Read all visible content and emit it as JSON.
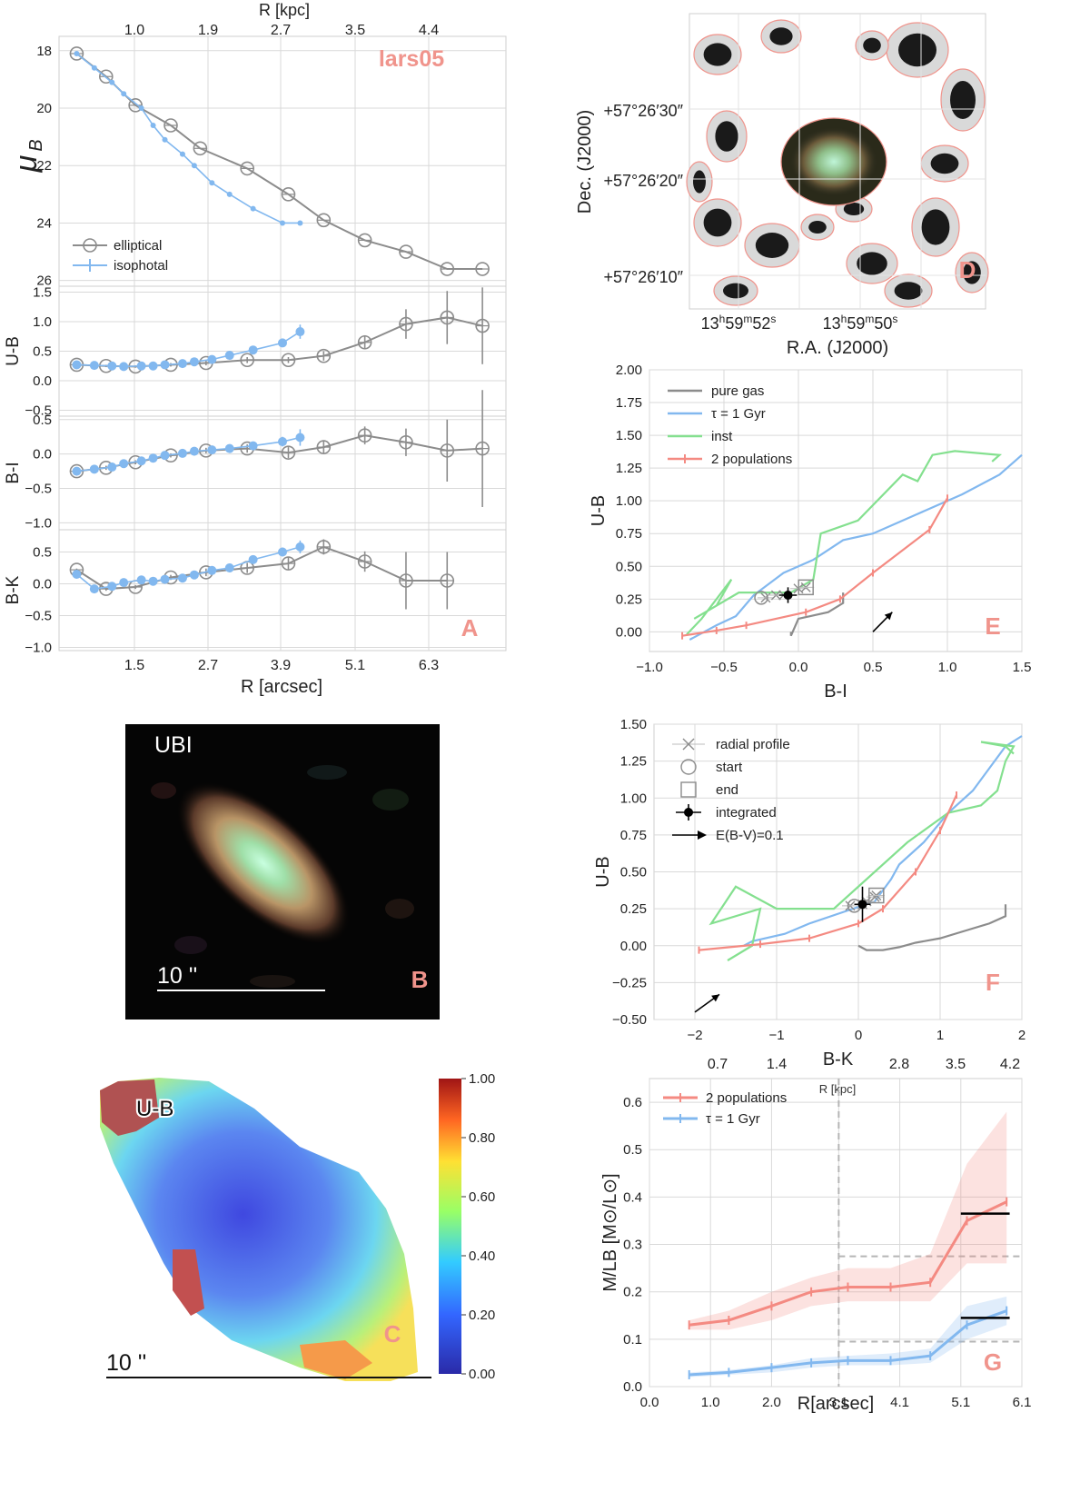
{
  "figure": {
    "object_label": "lars05"
  },
  "colors": {
    "elliptical": "#8c8c8c",
    "isophotal": "#82b8ef",
    "pure_gas": "#8c8c8c",
    "tau": "#82b8ef",
    "inst": "#84e08f",
    "two_pop": "#f48a82",
    "panel_letter": "#f0948c",
    "grid": "#d9d9d9"
  },
  "chart_data": [
    {
      "panel": "A",
      "type": "line",
      "title": "",
      "top_axis_label": "R [kpc]",
      "top_ticks": [
        "1.0",
        "1.9",
        "2.7",
        "3.5",
        "4.4"
      ],
      "xlabel": "R [arcsec]",
      "x_ticks": [
        "1.5",
        "2.7",
        "3.9",
        "5.1",
        "6.3"
      ],
      "xlim": [
        0,
        7.6
      ],
      "subplots": [
        {
          "ylabel": "μB",
          "ylim": [
            26.2,
            17.5
          ],
          "inverted": true,
          "y_ticks": [
            18,
            20,
            22,
            24,
            26
          ],
          "series": [
            {
              "name": "elliptical",
              "x": [
                0.3,
                0.8,
                1.3,
                1.9,
                2.4,
                3.2,
                3.9,
                4.5,
                5.2,
                5.9,
                6.6,
                7.2
              ],
              "y": [
                18.1,
                18.9,
                19.9,
                20.6,
                21.4,
                22.1,
                23.0,
                23.9,
                24.6,
                25.0,
                25.6,
                25.6
              ]
            },
            {
              "name": "isophotal",
              "x": [
                0.3,
                0.6,
                0.9,
                1.1,
                1.4,
                1.6,
                1.8,
                2.1,
                2.3,
                2.6,
                2.9,
                3.3,
                3.8,
                4.1
              ],
              "y": [
                18.1,
                18.6,
                19.1,
                19.5,
                20.0,
                20.6,
                21.1,
                21.6,
                22.0,
                22.6,
                23.0,
                23.5,
                24.0,
                24.0
              ]
            }
          ]
        },
        {
          "ylabel": "U-B",
          "ylim": [
            -0.6,
            1.6
          ],
          "y_ticks": [
            "1.5",
            "1.0",
            "0.5",
            "0.0",
            "−0.5"
          ],
          "series": [
            {
              "name": "elliptical",
              "x": [
                0.3,
                0.8,
                1.3,
                1.9,
                2.5,
                3.2,
                3.9,
                4.5,
                5.2,
                5.9,
                6.6,
                7.2
              ],
              "y": [
                0.27,
                0.25,
                0.24,
                0.27,
                0.3,
                0.35,
                0.35,
                0.42,
                0.65,
                0.96,
                1.07,
                0.93
              ],
              "err": [
                0.02,
                0.02,
                0.02,
                0.03,
                0.04,
                0.05,
                0.05,
                0.08,
                0.12,
                0.25,
                0.45,
                0.65
              ]
            },
            {
              "name": "isophotal",
              "x": [
                0.3,
                0.6,
                0.9,
                1.1,
                1.4,
                1.6,
                1.8,
                2.1,
                2.3,
                2.6,
                2.9,
                3.3,
                3.8,
                4.1
              ],
              "y": [
                0.27,
                0.26,
                0.25,
                0.24,
                0.25,
                0.25,
                0.27,
                0.29,
                0.32,
                0.36,
                0.43,
                0.52,
                0.64,
                0.83
              ],
              "err": [
                0.02,
                0.02,
                0.02,
                0.02,
                0.02,
                0.02,
                0.02,
                0.03,
                0.03,
                0.04,
                0.04,
                0.05,
                0.06,
                0.12
              ]
            }
          ]
        },
        {
          "ylabel": "B-I",
          "ylim": [
            -1.1,
            0.55
          ],
          "y_ticks": [
            "0.5",
            "0.0",
            "−0.5",
            "−1.0"
          ],
          "series": [
            {
              "name": "elliptical",
              "x": [
                0.3,
                0.8,
                1.3,
                1.9,
                2.5,
                3.2,
                3.9,
                4.5,
                5.2,
                5.9,
                6.6,
                7.2
              ],
              "y": [
                -0.25,
                -0.2,
                -0.12,
                -0.02,
                0.05,
                0.08,
                0.02,
                0.1,
                0.27,
                0.17,
                0.05,
                0.08
              ],
              "err": [
                0.02,
                0.03,
                0.03,
                0.03,
                0.04,
                0.06,
                0.08,
                0.1,
                0.13,
                0.2,
                0.45,
                0.85
              ]
            },
            {
              "name": "isophotal",
              "x": [
                0.3,
                0.6,
                0.9,
                1.1,
                1.4,
                1.6,
                1.8,
                2.1,
                2.3,
                2.6,
                2.9,
                3.3,
                3.8,
                4.1
              ],
              "y": [
                -0.25,
                -0.22,
                -0.19,
                -0.14,
                -0.1,
                -0.06,
                -0.02,
                0.01,
                0.04,
                0.06,
                0.08,
                0.12,
                0.18,
                0.24
              ],
              "err": [
                0.02,
                0.02,
                0.02,
                0.02,
                0.02,
                0.02,
                0.03,
                0.03,
                0.03,
                0.04,
                0.04,
                0.05,
                0.07,
                0.12
              ]
            }
          ]
        },
        {
          "ylabel": "B-K",
          "ylim": [
            -1.05,
            0.85
          ],
          "y_ticks": [
            "0.5",
            "0.0",
            "−0.5",
            "−1.0"
          ],
          "series": [
            {
              "name": "elliptical",
              "x": [
                0.3,
                0.8,
                1.3,
                1.9,
                2.5,
                3.2,
                3.9,
                4.5,
                5.2,
                5.9,
                6.6
              ],
              "y": [
                0.22,
                -0.08,
                -0.05,
                0.1,
                0.18,
                0.25,
                0.32,
                0.58,
                0.35,
                0.05,
                0.05
              ],
              "err": [
                0.02,
                0.03,
                0.03,
                0.04,
                0.06,
                0.08,
                0.1,
                0.12,
                0.16,
                0.45,
                0.45
              ]
            },
            {
              "name": "isophotal",
              "x": [
                0.3,
                0.6,
                0.9,
                1.1,
                1.4,
                1.6,
                1.8,
                2.1,
                2.3,
                2.6,
                2.9,
                3.3,
                3.8,
                4.1
              ],
              "y": [
                0.15,
                -0.08,
                -0.04,
                0.02,
                0.06,
                0.04,
                0.07,
                0.09,
                0.14,
                0.21,
                0.25,
                0.38,
                0.5,
                0.58
              ],
              "err": [
                0.03,
                0.04,
                0.03,
                0.03,
                0.03,
                0.03,
                0.03,
                0.04,
                0.04,
                0.05,
                0.05,
                0.06,
                0.07,
                0.1
              ]
            }
          ]
        }
      ],
      "legend": {
        "entries": [
          "elliptical",
          "isophotal"
        ],
        "placement": "lower-left of top subplot"
      }
    },
    {
      "panel": "D",
      "type": "image",
      "xlabel": "R.A. (J2000)",
      "ylabel": "Dec. (J2000)",
      "x_ticks": [
        "13h59m52s",
        "13h59m50s"
      ],
      "y_ticks": [
        "+57°26′30″",
        "+57°26′20″",
        "+57°26′10″"
      ]
    },
    {
      "panel": "E",
      "type": "line",
      "xlabel": "B-I",
      "ylabel": "U-B",
      "xlim": [
        -1.0,
        1.5
      ],
      "ylim": [
        -0.15,
        2.0
      ],
      "x_ticks": [
        "−1.0",
        "−0.5",
        "0.0",
        "0.5",
        "1.0",
        "1.5"
      ],
      "y_ticks": [
        "2.00",
        "1.75",
        "1.50",
        "1.25",
        "1.00",
        "0.75",
        "0.50",
        "0.25",
        "0.00"
      ],
      "legend": {
        "entries": [
          "pure gas",
          "τ = 1 Gyr",
          "inst",
          "2 populations"
        ],
        "placement": "top-left"
      },
      "series": [
        {
          "name": "pure gas",
          "x": [
            -0.05,
            -0.05,
            0.0,
            0.08,
            0.2,
            0.3,
            0.3
          ],
          "y": [
            0.0,
            -0.03,
            0.1,
            0.12,
            0.15,
            0.22,
            0.3
          ]
        },
        {
          "name": "τ = 1 Gyr",
          "x": [
            -0.73,
            -0.55,
            -0.42,
            -0.3,
            -0.1,
            0.1,
            0.3,
            0.5,
            0.8,
            1.1,
            1.35,
            1.5
          ],
          "y": [
            -0.06,
            0.05,
            0.12,
            0.28,
            0.45,
            0.55,
            0.7,
            0.75,
            0.9,
            1.05,
            1.2,
            1.35
          ]
        },
        {
          "name": "inst",
          "x": [
            -0.75,
            -0.65,
            -0.45,
            -0.55,
            -0.7,
            -0.4,
            -0.05,
            0.1,
            0.15,
            0.4,
            0.7,
            0.8,
            0.9,
            1.05,
            1.35,
            1.3
          ],
          "y": [
            -0.02,
            0.1,
            0.4,
            0.2,
            0.1,
            0.3,
            0.3,
            0.4,
            0.75,
            0.85,
            1.2,
            1.15,
            1.35,
            1.38,
            1.35,
            1.3
          ]
        },
        {
          "name": "2 populations",
          "x": [
            -0.78,
            -0.55,
            -0.35,
            0.05,
            0.28,
            0.5,
            0.88,
            1.0
          ],
          "y": [
            -0.03,
            0.01,
            0.05,
            0.15,
            0.25,
            0.45,
            0.78,
            1.02
          ]
        }
      ],
      "profile": {
        "x": [
          -0.22,
          -0.15,
          -0.1,
          0.0,
          0.05
        ],
        "y": [
          0.26,
          0.28,
          0.28,
          0.33,
          0.34
        ]
      },
      "start": {
        "x": -0.25,
        "y": 0.26
      },
      "end": {
        "x": 0.05,
        "y": 0.34
      },
      "integrated": {
        "x": -0.07,
        "y": 0.28,
        "xerr": 0.06,
        "yerr": 0.06
      },
      "reddening_vector": {
        "from": [
          0.5,
          0.0
        ],
        "to": [
          0.63,
          0.15
        ]
      }
    },
    {
      "panel": "F",
      "type": "line",
      "xlabel": "B-K",
      "ylabel": "U-B",
      "xlim": [
        -2.5,
        2.0
      ],
      "ylim": [
        -0.5,
        1.5
      ],
      "x_ticks": [
        "−2",
        "−1",
        "0",
        "1",
        "2"
      ],
      "y_ticks": [
        "1.50",
        "1.25",
        "1.00",
        "0.75",
        "0.50",
        "0.25",
        "0.00",
        "−0.25",
        "−0.50"
      ],
      "legend": {
        "entries": [
          "radial profile",
          "start",
          "end",
          "integrated",
          "E(B-V)=0.1"
        ],
        "placement": "top-left"
      },
      "series": [
        {
          "name": "pure gas",
          "x": [
            0.0,
            0.1,
            0.3,
            0.5,
            0.7,
            1.0,
            1.3,
            1.6,
            1.8,
            1.8
          ],
          "y": [
            0.0,
            -0.03,
            -0.03,
            -0.01,
            0.02,
            0.05,
            0.1,
            0.15,
            0.2,
            0.28
          ]
        },
        {
          "name": "τ = 1 Gyr",
          "x": [
            -1.4,
            -1.3,
            -0.9,
            -0.6,
            0.2,
            0.4,
            0.5,
            0.8,
            1.1,
            1.4,
            1.6,
            1.8,
            2.0
          ],
          "y": [
            0.0,
            0.03,
            0.08,
            0.15,
            0.3,
            0.45,
            0.55,
            0.7,
            0.9,
            1.05,
            1.2,
            1.35,
            1.42
          ]
        },
        {
          "name": "inst",
          "x": [
            -1.6,
            -1.3,
            -1.2,
            -1.8,
            -1.5,
            -1.0,
            -0.3,
            0.6,
            1.1,
            1.5,
            1.7,
            1.8,
            1.9,
            1.5,
            1.8,
            1.9
          ],
          "y": [
            -0.1,
            0.0,
            0.25,
            0.15,
            0.4,
            0.25,
            0.25,
            0.7,
            0.9,
            0.95,
            1.05,
            1.25,
            1.35,
            1.38,
            1.35,
            1.3
          ]
        },
        {
          "name": "2 populations",
          "x": [
            -1.95,
            -1.2,
            -0.6,
            0.0,
            0.3,
            0.7,
            1.0,
            1.2
          ],
          "y": [
            -0.03,
            0.01,
            0.05,
            0.15,
            0.25,
            0.5,
            0.78,
            1.02
          ]
        }
      ],
      "profile": {
        "x": [
          -0.1,
          0.05,
          0.1,
          0.2,
          0.22
        ],
        "y": [
          0.27,
          0.28,
          0.3,
          0.33,
          0.34
        ]
      },
      "start": {
        "x": -0.05,
        "y": 0.27
      },
      "end": {
        "x": 0.22,
        "y": 0.34
      },
      "integrated": {
        "x": 0.05,
        "y": 0.28,
        "xerr": 0.1,
        "yerr": 0.12
      },
      "reddening_vector": {
        "from": [
          -2.0,
          -0.45
        ],
        "to": [
          -1.7,
          -0.33
        ]
      }
    },
    {
      "panel": "G",
      "type": "line",
      "xlabel": "R[arcsec]",
      "ylabel": "M/LB [M⊙/L⊙]",
      "top_axis_label": "R [kpc]",
      "top_ticks": [
        "0.7",
        "1.4",
        "2.8",
        "3.5",
        "4.2"
      ],
      "xlim": [
        0.0,
        6.1
      ],
      "ylim": [
        0.0,
        0.65
      ],
      "x_ticks": [
        "0.0",
        "1.0",
        "2.0",
        "3.1",
        "4.1",
        "5.1",
        "6.1"
      ],
      "y_ticks": [
        "0.6",
        "0.5",
        "0.4",
        "0.3",
        "0.2",
        "0.1",
        "0.0"
      ],
      "legend": {
        "entries": [
          "2 populations",
          "τ = 1 Gyr"
        ],
        "placement": "top-left"
      },
      "vline_x": 3.1,
      "series": [
        {
          "name": "2 populations",
          "x": [
            0.65,
            1.3,
            2.0,
            2.65,
            3.25,
            3.95,
            4.6,
            5.2,
            5.85
          ],
          "y": [
            0.13,
            0.14,
            0.17,
            0.2,
            0.21,
            0.21,
            0.22,
            0.35,
            0.39
          ],
          "lo": [
            0.12,
            0.12,
            0.14,
            0.17,
            0.18,
            0.18,
            0.18,
            0.26,
            0.26
          ],
          "hi": [
            0.14,
            0.16,
            0.2,
            0.23,
            0.25,
            0.25,
            0.28,
            0.47,
            0.58
          ]
        },
        {
          "name": "τ = 1 Gyr",
          "x": [
            0.65,
            1.3,
            2.0,
            2.65,
            3.25,
            3.95,
            4.6,
            5.2,
            5.85
          ],
          "y": [
            0.025,
            0.03,
            0.04,
            0.05,
            0.055,
            0.055,
            0.065,
            0.13,
            0.16
          ],
          "lo": [
            0.02,
            0.025,
            0.03,
            0.04,
            0.045,
            0.045,
            0.05,
            0.1,
            0.13
          ],
          "hi": [
            0.03,
            0.035,
            0.045,
            0.06,
            0.065,
            0.07,
            0.08,
            0.17,
            0.19
          ]
        }
      ],
      "integrated_markers": [
        {
          "x": [
            5.1,
            5.9
          ],
          "y": 0.365
        },
        {
          "x": [
            5.1,
            5.9
          ],
          "y": 0.145
        }
      ],
      "dashed_levels": [
        {
          "x": [
            3.1,
            6.1
          ],
          "y": 0.275
        },
        {
          "x": [
            3.1,
            6.1
          ],
          "y": 0.095
        }
      ]
    }
  ],
  "panels": {
    "A": "A",
    "B": "B",
    "C": "C",
    "D": "D",
    "E": "E",
    "F": "F",
    "G": "G"
  },
  "panel_b": {
    "label": "UBI",
    "scale": "10 ''"
  },
  "panel_c": {
    "label": "U-B",
    "scale": "10 ''",
    "colorbar_ticks": [
      "1.00",
      "0.80",
      "0.60",
      "0.40",
      "0.20",
      "0.00"
    ]
  }
}
